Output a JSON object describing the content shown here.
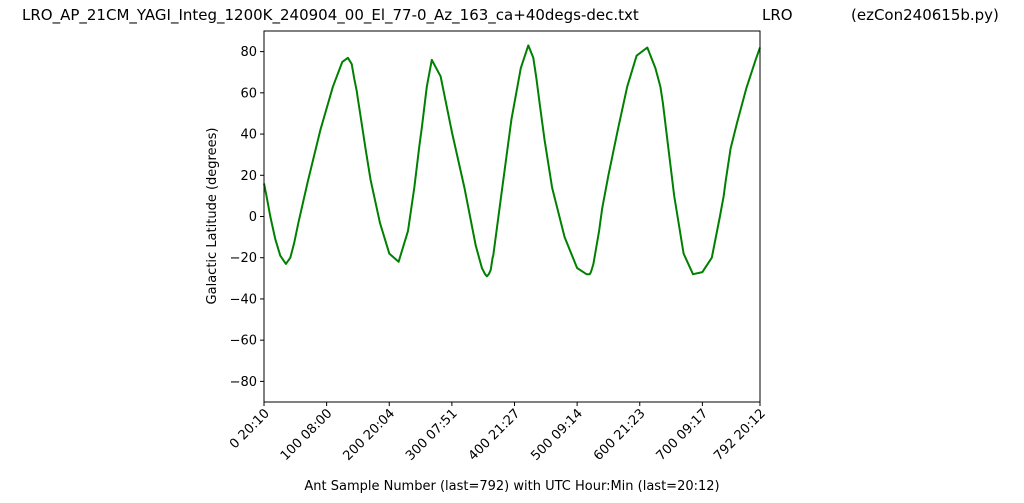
{
  "header": {
    "filename": "LRO_AP_21CM_YAGI_Integ_1200K_240904_00_El_77-0_Az_163_ca+40degs-dec.txt",
    "site": "LRO",
    "program": "(ezCon240615b.py)"
  },
  "chart_data": {
    "type": "line",
    "title": "",
    "xlabel": "Ant Sample Number (last=792) with UTC Hour:Min (last=20:12)",
    "ylabel": "Galactic Latitude (degrees)",
    "xlim": [
      0,
      792
    ],
    "ylim": [
      -90,
      90
    ],
    "grid": false,
    "xticks": [
      {
        "value": 0,
        "label": "0  20:10"
      },
      {
        "value": 100,
        "label": "100  08:00"
      },
      {
        "value": 200,
        "label": "200  20:04"
      },
      {
        "value": 300,
        "label": "300  07:51"
      },
      {
        "value": 400,
        "label": "400  21:27"
      },
      {
        "value": 500,
        "label": "500  09:14"
      },
      {
        "value": 600,
        "label": "600  21:23"
      },
      {
        "value": 700,
        "label": "700  09:17"
      },
      {
        "value": 792,
        "label": "792  20:12"
      }
    ],
    "yticks": [
      {
        "value": 80,
        "label": "80"
      },
      {
        "value": 60,
        "label": "60"
      },
      {
        "value": 40,
        "label": "40"
      },
      {
        "value": 20,
        "label": "20"
      },
      {
        "value": 0,
        "label": "0"
      },
      {
        "value": -20,
        "label": "−20"
      },
      {
        "value": -40,
        "label": "−40"
      },
      {
        "value": -60,
        "label": "−60"
      },
      {
        "value": -80,
        "label": "−80"
      }
    ],
    "series": [
      {
        "color": "#008000",
        "x": [
          0,
          4,
          10,
          18,
          26,
          35,
          42,
          48,
          55,
          70,
          90,
          110,
          125,
          134,
          140,
          144,
          148,
          150,
          155,
          162,
          170,
          185,
          200,
          215,
          230,
          240,
          248,
          252,
          256,
          260,
          268,
          282,
          300,
          320,
          338,
          348,
          353,
          356,
          359,
          362,
          365,
          366,
          367,
          370,
          380,
          395,
          410,
          422,
          430,
          435,
          440,
          448,
          460,
          480,
          500,
          515,
          520,
          522,
          524,
          526,
          530,
          535,
          540,
          550,
          565,
          580,
          595,
          612,
          625,
          633,
          637,
          641,
          645,
          655,
          670,
          685,
          700,
          715,
          728,
          734,
          737,
          741,
          745,
          755,
          770,
          785,
          792
        ],
        "y": [
          16,
          10,
          0,
          -11,
          -19,
          -23,
          -20,
          -13,
          -3,
          17,
          42,
          63,
          75,
          77,
          74,
          67,
          61,
          57,
          47,
          33,
          18,
          -3,
          -18,
          -22,
          -7,
          14,
          34,
          43,
          53,
          63,
          76,
          68,
          41,
          14,
          -14,
          -25,
          -28,
          -29,
          -28,
          -26,
          -20,
          -19,
          -17,
          -10,
          13,
          47,
          72,
          83,
          77,
          67,
          55,
          37,
          14,
          -10,
          -25,
          -28,
          -28,
          -27,
          -25,
          -23,
          -16,
          -7,
          4,
          20,
          42,
          63,
          78,
          82,
          72,
          63,
          55,
          45,
          35,
          10,
          -18,
          -28,
          -27,
          -20,
          0,
          10,
          17,
          25,
          33,
          45,
          62,
          76,
          82
        ]
      }
    ]
  }
}
